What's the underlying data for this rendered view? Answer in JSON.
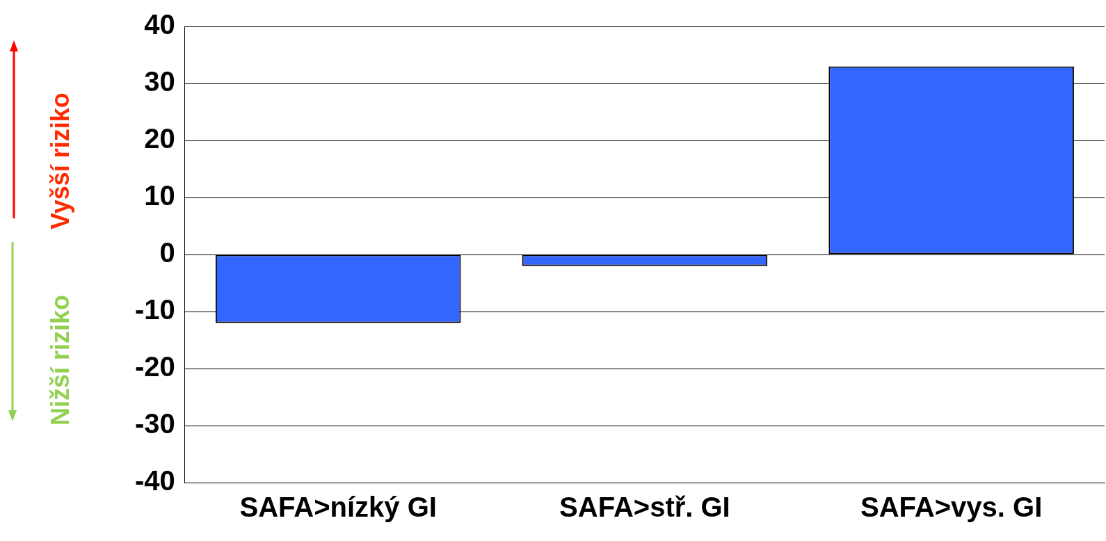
{
  "chart_data": {
    "type": "bar",
    "categories": [
      "SAFA>nízký GI",
      "SAFA>stř. GI",
      "SAFA>vys. GI"
    ],
    "values": [
      -12,
      -2,
      33
    ],
    "color": "#3366ff",
    "ylim": [
      -40,
      40
    ],
    "yticks": [
      -40,
      -30,
      -20,
      -10,
      0,
      10,
      20,
      30,
      40
    ],
    "grid": "y",
    "legend": false,
    "annotations": [
      "Vyšší riziko",
      "Nižší riziko"
    ]
  }
}
